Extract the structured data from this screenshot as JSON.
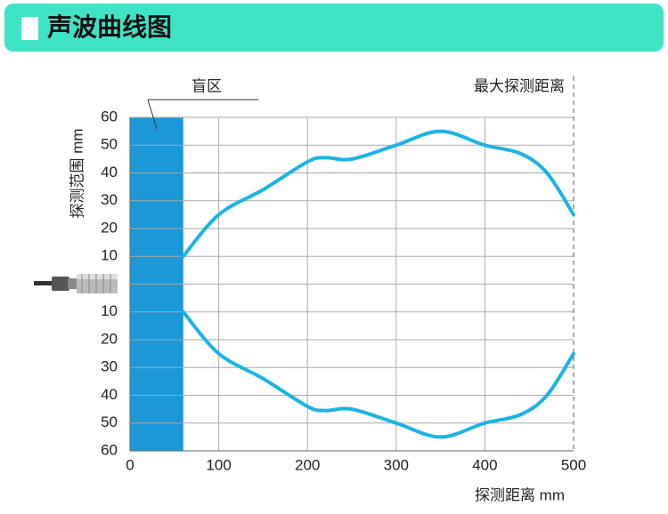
{
  "chart_data": {
    "type": "line",
    "title": "声波曲线图",
    "x_label": "探测距离 mm",
    "y_label": "探测范围 mm",
    "max_distance_label": "最大探测距离",
    "blind_zone": {
      "label": "盲区",
      "xlim": [
        0,
        60
      ],
      "color": "#1a98d8"
    },
    "xlim": [
      0,
      500
    ],
    "xticks": [
      0,
      100,
      200,
      300,
      400,
      500
    ],
    "ylim": [
      -60,
      60
    ],
    "yticks": [
      {
        "value": -60,
        "label": "60"
      },
      {
        "value": -50,
        "label": "50"
      },
      {
        "value": -40,
        "label": "40"
      },
      {
        "value": -30,
        "label": "30"
      },
      {
        "value": -20,
        "label": "20"
      },
      {
        "value": -10,
        "label": "10"
      },
      {
        "value": 0,
        "label": null
      },
      10,
      20,
      30,
      40,
      50,
      60
    ],
    "grid": true,
    "x": [
      60,
      100,
      150,
      200,
      220,
      250,
      300,
      350,
      400,
      440,
      470,
      500
    ],
    "series": [
      {
        "color": "#1ab3e6",
        "values": [
          10,
          25,
          34,
          44,
          45.5,
          45,
          50,
          55,
          50,
          47,
          40,
          25
        ]
      },
      {
        "color": "#1ab3e6",
        "values": [
          -10,
          -25,
          -34,
          -44,
          -45.5,
          -45,
          -50,
          -55,
          -50,
          -47,
          -40,
          -25
        ]
      }
    ]
  }
}
